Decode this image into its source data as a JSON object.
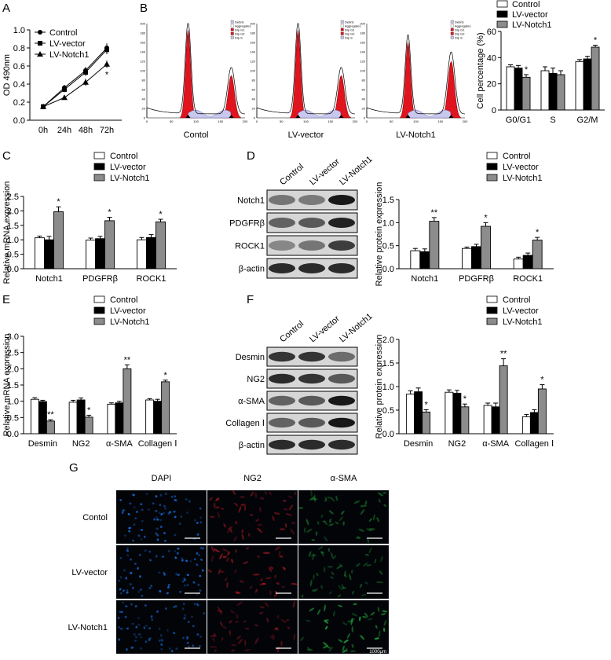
{
  "panel_letters": [
    "A",
    "B",
    "C",
    "D",
    "E",
    "F",
    "G"
  ],
  "legend": [
    "Control",
    "LV-vector",
    "LV-Notch1"
  ],
  "colors": {
    "control": "#ffffff",
    "vector": "#000000",
    "notch1": "#8c8c8c",
    "flow_red": "#e0141e",
    "dapi": "#1a6fe0",
    "ng2": "#c81e28",
    "sma": "#23a83c"
  },
  "chart_data": [
    {
      "id": "A",
      "type": "line",
      "ylabel": "OD 490nm",
      "x": [
        "0h",
        "24h",
        "48h",
        "72h"
      ],
      "ylim": [
        0,
        1.0
      ],
      "yticks": [
        "0.0",
        "0.2",
        "0.4",
        "0.6",
        "0.8",
        "1.0"
      ],
      "series": [
        {
          "name": "Control",
          "values": [
            0.15,
            0.36,
            0.55,
            0.8
          ],
          "err": [
            0.02,
            0.03,
            0.04,
            0.05
          ]
        },
        {
          "name": "LV-vector",
          "values": [
            0.15,
            0.34,
            0.53,
            0.78
          ],
          "err": [
            0.02,
            0.03,
            0.04,
            0.05
          ]
        },
        {
          "name": "LV-Notch1",
          "values": [
            0.15,
            0.25,
            0.42,
            0.62
          ],
          "err": [
            0.02,
            0.02,
            0.04,
            0.04
          ]
        }
      ],
      "annotations": [
        {
          "x": "72h",
          "text": "*"
        }
      ]
    },
    {
      "id": "B-cycle",
      "type": "bar",
      "ylabel": "Cell percentage (%)",
      "categories": [
        "G0/G1",
        "S",
        "G2/M"
      ],
      "ylim": [
        0,
        60
      ],
      "yticks": [
        "0",
        "20",
        "40",
        "60"
      ],
      "series": [
        {
          "name": "Control",
          "values": [
            33,
            30,
            37
          ],
          "err": [
            1.5,
            3,
            1.5
          ]
        },
        {
          "name": "LV-vector",
          "values": [
            32,
            28,
            39
          ],
          "err": [
            2,
            4,
            2
          ]
        },
        {
          "name": "LV-Notch1",
          "values": [
            25,
            27,
            48
          ],
          "err": [
            2,
            3,
            1.5
          ]
        }
      ],
      "stars": [
        "*",
        "",
        "*"
      ]
    },
    {
      "id": "B-flow",
      "type": "histogram",
      "panels": [
        "Contol",
        "LV-vector",
        "LV-Notch1"
      ],
      "xticks": [
        "0",
        "50",
        "100",
        "150",
        "200"
      ],
      "yticks": [
        "0",
        "20",
        "40",
        "60",
        "80",
        "100",
        "120",
        "140",
        "160",
        "180",
        "200"
      ],
      "legend": [
        "Debris",
        "Aggregates",
        "Dip G1",
        "Dip G2",
        "Dip S"
      ],
      "peaks": [
        {
          "g1": 0.93,
          "g2": 0.45
        },
        {
          "g1": 0.93,
          "g2": 0.45
        },
        {
          "g1": 0.8,
          "g2": 0.6
        }
      ]
    },
    {
      "id": "C",
      "type": "bar",
      "ylabel": "Relative mRNA expression",
      "categories": [
        "Notch1",
        "PDGFRβ",
        "ROCK1"
      ],
      "ylim": [
        0,
        2.5
      ],
      "yticks": [
        "0.0",
        "0.5",
        "1.0",
        "1.5",
        "2.0",
        "2.5"
      ],
      "series": [
        {
          "name": "Control",
          "values": [
            1.07,
            0.99,
            1.0
          ],
          "err": [
            0.06,
            0.07,
            0.08
          ]
        },
        {
          "name": "LV-vector",
          "values": [
            1.0,
            1.04,
            1.08
          ],
          "err": [
            0.12,
            0.08,
            0.1
          ]
        },
        {
          "name": "LV-Notch1",
          "values": [
            1.97,
            1.66,
            1.62
          ],
          "err": [
            0.17,
            0.12,
            0.09
          ]
        }
      ],
      "stars": [
        "*",
        "*",
        "*"
      ]
    },
    {
      "id": "D-blot",
      "type": "blot",
      "lanes": [
        "Control",
        "LV-vector",
        "LV-Notch1"
      ],
      "rows": [
        "Notch1",
        "PDGFRβ",
        "ROCK1",
        "β-actin"
      ],
      "intensity": [
        [
          0.45,
          0.42,
          0.95
        ],
        [
          0.55,
          0.6,
          0.9
        ],
        [
          0.35,
          0.45,
          0.75
        ],
        [
          0.85,
          0.85,
          0.85
        ]
      ]
    },
    {
      "id": "D",
      "type": "bar",
      "ylabel": "Relative protein expression",
      "categories": [
        "Notch1",
        "PDGFRβ",
        "ROCK1"
      ],
      "ylim": [
        0,
        1.5
      ],
      "yticks": [
        "0.0",
        "0.5",
        "1.0",
        "1.5"
      ],
      "series": [
        {
          "name": "Control",
          "values": [
            0.39,
            0.44,
            0.21
          ],
          "err": [
            0.05,
            0.03,
            0.04
          ]
        },
        {
          "name": "LV-vector",
          "values": [
            0.37,
            0.48,
            0.29
          ],
          "err": [
            0.06,
            0.05,
            0.05
          ]
        },
        {
          "name": "LV-Notch1",
          "values": [
            1.03,
            0.92,
            0.62
          ],
          "err": [
            0.08,
            0.08,
            0.06
          ]
        }
      ],
      "stars": [
        "**",
        "*",
        "*"
      ]
    },
    {
      "id": "E",
      "type": "bar",
      "ylabel": "Relative mRNA expression",
      "categories": [
        "Desmin",
        "NG2",
        "α-SMA",
        "Collagen Ⅰ"
      ],
      "ylim": [
        0,
        3.0
      ],
      "yticks": [
        "0.0",
        "0.5",
        "1.0",
        "1.5",
        "2.0",
        "2.5",
        "3.0"
      ],
      "series": [
        {
          "name": "Control",
          "values": [
            1.06,
            0.97,
            0.91,
            1.04
          ],
          "err": [
            0.05,
            0.06,
            0.04,
            0.04
          ]
        },
        {
          "name": "LV-vector",
          "values": [
            0.99,
            1.04,
            0.95,
            1.0
          ],
          "err": [
            0.04,
            0.06,
            0.05,
            0.06
          ]
        },
        {
          "name": "LV-Notch1",
          "values": [
            0.39,
            0.51,
            2.0,
            1.6
          ],
          "err": [
            0.04,
            0.06,
            0.12,
            0.05
          ]
        }
      ],
      "stars": [
        "**",
        "*",
        "**",
        "*"
      ]
    },
    {
      "id": "F-blot",
      "type": "blot",
      "lanes": [
        "Control",
        "LV-vector",
        "LV-Notch1"
      ],
      "rows": [
        "Desmin",
        "NG2",
        "α-SMA",
        "Collagen Ⅰ",
        "β-actin"
      ],
      "intensity": [
        [
          0.8,
          0.8,
          0.5
        ],
        [
          0.85,
          0.8,
          0.6
        ],
        [
          0.55,
          0.6,
          0.95
        ],
        [
          0.55,
          0.6,
          0.95
        ],
        [
          0.85,
          0.85,
          0.85
        ]
      ]
    },
    {
      "id": "F",
      "type": "bar",
      "ylabel": "Relative protein expression",
      "categories": [
        "Desmin",
        "NG2",
        "α-SMA",
        "Collagen Ⅰ"
      ],
      "ylim": [
        0,
        2.0
      ],
      "yticks": [
        "0.0",
        "0.5",
        "1.0",
        "1.5",
        "2.0"
      ],
      "series": [
        {
          "name": "Control",
          "values": [
            0.84,
            0.88,
            0.6,
            0.36
          ],
          "err": [
            0.07,
            0.05,
            0.05,
            0.05
          ]
        },
        {
          "name": "LV-vector",
          "values": [
            0.89,
            0.86,
            0.57,
            0.45
          ],
          "err": [
            0.08,
            0.06,
            0.08,
            0.06
          ]
        },
        {
          "name": "LV-Notch1",
          "values": [
            0.46,
            0.57,
            1.44,
            0.95
          ],
          "err": [
            0.05,
            0.06,
            0.15,
            0.09
          ]
        }
      ],
      "stars": [
        "*",
        "*",
        "**",
        "*"
      ]
    },
    {
      "id": "G",
      "type": "image-grid",
      "columns": [
        "DAPI",
        "NG2",
        "α-SMA"
      ],
      "rows": [
        "Contol",
        "LV-vector",
        "LV-Notch1"
      ],
      "scale_label": "1000μm",
      "density": [
        [
          0.9,
          0.4,
          0.35
        ],
        [
          0.9,
          0.55,
          0.25
        ],
        [
          0.7,
          0.2,
          0.85
        ]
      ]
    }
  ]
}
